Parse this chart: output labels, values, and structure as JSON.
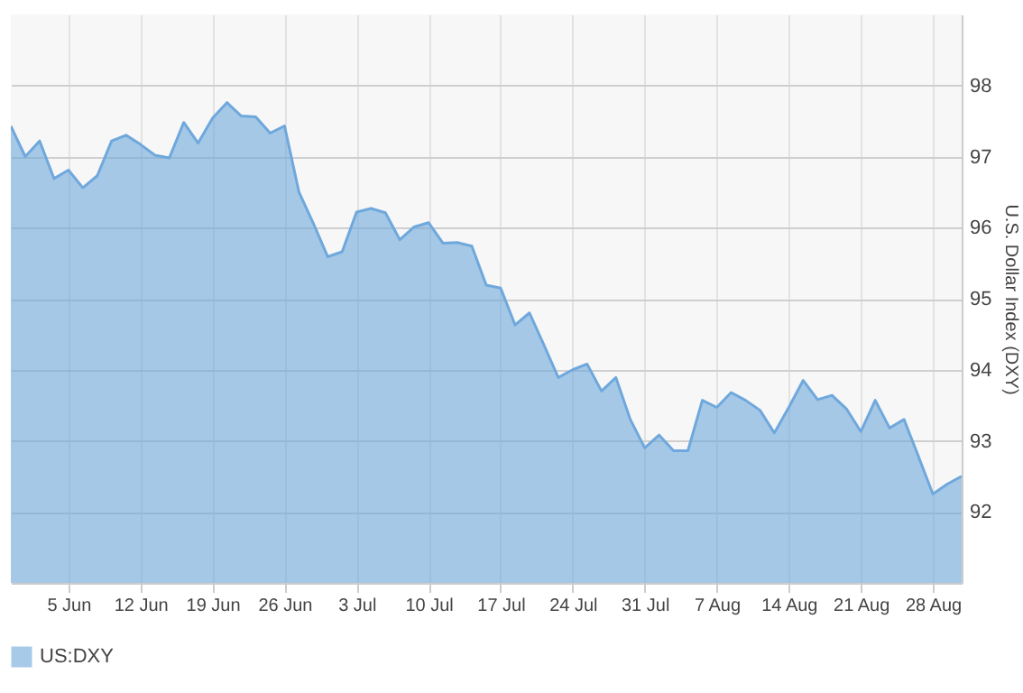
{
  "chart_data": {
    "type": "area",
    "ylabel": "U.S. Dollar Index (DXY)",
    "categories": [
      null,
      null,
      null,
      null,
      "5 Jun",
      null,
      null,
      null,
      null,
      "12 Jun",
      null,
      null,
      null,
      null,
      "19 Jun",
      null,
      null,
      null,
      null,
      "26 Jun",
      null,
      null,
      null,
      null,
      "3 Jul",
      null,
      null,
      null,
      null,
      "10 Jul",
      null,
      null,
      null,
      null,
      "17 Jul",
      null,
      null,
      null,
      null,
      "24 Jul",
      null,
      null,
      null,
      null,
      "31 Jul",
      null,
      null,
      null,
      null,
      "7 Aug",
      null,
      null,
      null,
      null,
      "14 Aug",
      null,
      null,
      null,
      null,
      "21 Aug",
      null,
      null,
      null,
      null,
      "28 Aug",
      null,
      null
    ],
    "series": [
      {
        "name": "US:DXY",
        "color": "#6fa8dc",
        "values": [
          97.43,
          97.0,
          97.22,
          96.69,
          96.81,
          96.56,
          96.73,
          97.22,
          97.3,
          97.17,
          97.02,
          96.98,
          97.48,
          97.19,
          97.54,
          97.76,
          97.57,
          97.56,
          97.33,
          97.43,
          96.5,
          96.06,
          95.59,
          95.66,
          96.22,
          96.27,
          96.21,
          95.83,
          96.01,
          96.07,
          95.78,
          95.79,
          95.74,
          95.19,
          95.15,
          94.63,
          94.8,
          94.35,
          93.89,
          94.0,
          94.08,
          93.7,
          93.89,
          93.3,
          92.9,
          93.08,
          92.86,
          92.86,
          93.57,
          93.47,
          93.68,
          93.57,
          93.43,
          93.11,
          93.47,
          93.85,
          93.58,
          93.64,
          93.45,
          93.13,
          93.57,
          93.18,
          93.3,
          92.78,
          92.25,
          92.39,
          92.5
        ]
      }
    ],
    "ylim": [
      91,
      99
    ],
    "yticks": [
      92,
      93,
      94,
      95,
      96,
      97,
      98
    ],
    "grid": true,
    "legend": "bottom"
  }
}
